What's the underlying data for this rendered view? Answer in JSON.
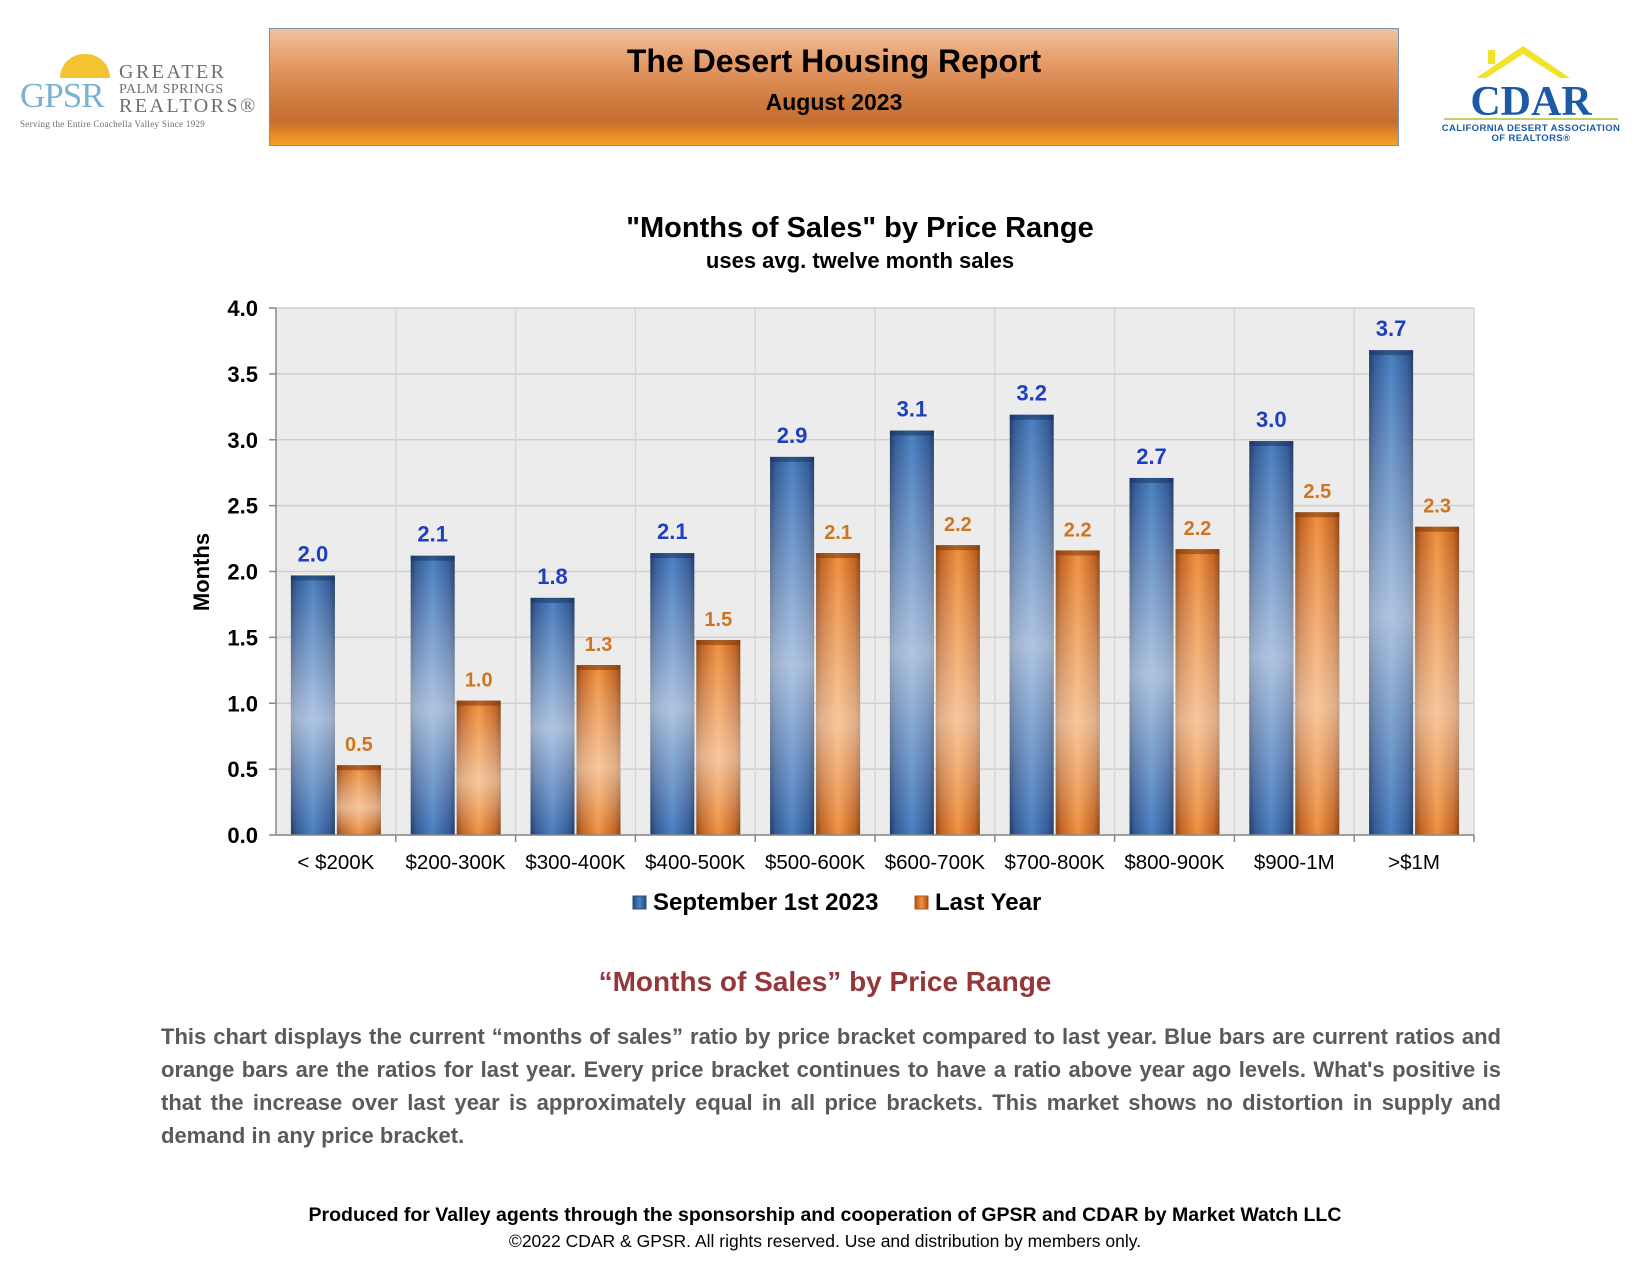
{
  "header": {
    "gpsr_logo": {
      "mark": "GPSR",
      "line1": "GREATER",
      "line2": "PALM SPRINGS",
      "line3": "REALTORS®",
      "tagline": "Serving the Entire Coachella Valley Since 1929"
    },
    "banner_title": "The Desert Housing Report",
    "banner_subtitle": "August 2023",
    "cdar_logo": {
      "mark": "CDAR",
      "line1": "CALIFORNIA DESERT ASSOCIATION",
      "line2": "OF REALTORS®"
    }
  },
  "chart_data": {
    "type": "bar",
    "title": "\"Months of Sales\" by Price Range",
    "subtitle": "uses avg. twelve month sales",
    "ylabel": "Months",
    "xlabel": "",
    "ylim": [
      0,
      4.0
    ],
    "yticks": [
      "0.0",
      "0.5",
      "1.0",
      "1.5",
      "2.0",
      "2.5",
      "3.0",
      "3.5",
      "4.0"
    ],
    "grid": true,
    "legend_position": "bottom",
    "categories": [
      "< $200K",
      "$200-300K",
      "$300-400K",
      "$400-500K",
      "$500-600K",
      "$600-700K",
      "$700-800K",
      "$800-900K",
      "$900-1M",
      ">$1M"
    ],
    "series": [
      {
        "name": "September 1st 2023",
        "color": "#3d6fb0",
        "label_color": "#1f3fbf",
        "values": [
          1.97,
          2.12,
          1.8,
          2.14,
          2.87,
          3.07,
          3.19,
          2.71,
          2.99,
          3.68
        ],
        "labels": [
          "2.0",
          "2.1",
          "1.8",
          "2.1",
          "2.9",
          "3.1",
          "3.2",
          "2.7",
          "3.0",
          "3.7"
        ]
      },
      {
        "name": "Last Year",
        "color": "#e07d28",
        "label_color": "#d0741f",
        "values": [
          0.53,
          1.02,
          1.29,
          1.48,
          2.14,
          2.2,
          2.16,
          2.17,
          2.45,
          2.34
        ],
        "labels": [
          "0.5",
          "1.0",
          "1.3",
          "1.5",
          "2.1",
          "2.2",
          "2.2",
          "2.2",
          "2.5",
          "2.3"
        ]
      }
    ]
  },
  "description": {
    "heading": "“Months of Sales” by Price Range",
    "body": "This chart displays the current “months of sales” ratio by price bracket compared to last year. Blue bars are current ratios and orange bars are the ratios for last year. Every price bracket continues to have a ratio above year ago levels. What's positive is that the increase over last year is approximately equal in all price brackets. This market shows no distortion in supply and demand in any price bracket."
  },
  "footer": {
    "line1": "Produced for Valley agents through the sponsorship and cooperation of GPSR and CDAR by Market Watch LLC",
    "line2": "©2022 CDAR & GPSR.  All rights reserved.  Use and distribution by members only."
  }
}
